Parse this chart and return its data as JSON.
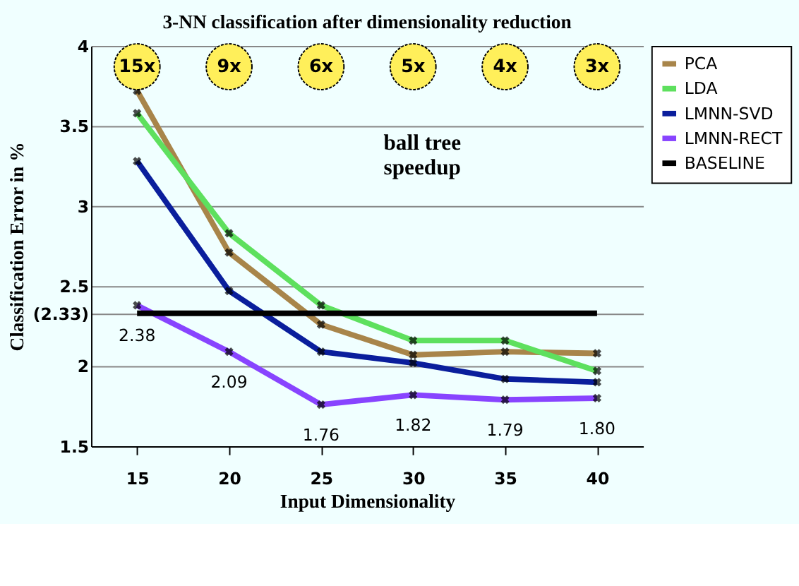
{
  "chart_data": {
    "type": "line",
    "title": "3-NN classification after dimensionality reduction",
    "xlabel": "Input Dimensionality",
    "ylabel": "Classification Error in %",
    "categories": [
      "15",
      "20",
      "25",
      "30",
      "35",
      "40"
    ],
    "series": [
      {
        "name": "PCA",
        "color": "#a8854a",
        "values": [
          3.72,
          2.71,
          2.26,
          2.07,
          2.09,
          2.08
        ]
      },
      {
        "name": "LDA",
        "color": "#5ee05e",
        "values": [
          3.58,
          2.83,
          2.38,
          2.16,
          2.16,
          1.97
        ]
      },
      {
        "name": "LMNN-SVD",
        "color": "#0a1e9c",
        "values": [
          3.28,
          2.47,
          2.09,
          2.02,
          1.92,
          1.9
        ]
      },
      {
        "name": "LMNN-RECT",
        "color": "#8844ff",
        "values": [
          2.38,
          2.09,
          1.76,
          1.82,
          1.79,
          1.8
        ],
        "value_labels": [
          "2.38",
          "2.09",
          "1.76",
          "1.82",
          "1.79",
          "1.80"
        ]
      },
      {
        "name": "BASELINE",
        "color": "#000000",
        "values": [
          2.33,
          2.33,
          2.33,
          2.33,
          2.33,
          2.33
        ],
        "marker": "none"
      }
    ],
    "ylim": [
      1.5,
      4
    ],
    "yticks": [
      1.5,
      2,
      2.5,
      3,
      3.5,
      4,
      {
        "value": 2.33,
        "label": "(2.33)"
      }
    ],
    "grid": "y",
    "legend": "right",
    "marker": "cross",
    "line_style": "solid",
    "annotations": [
      {
        "text": "15x",
        "x": "15",
        "y": 3.87
      },
      {
        "text": "9x",
        "x": "20",
        "y": 3.87
      },
      {
        "text": "6x",
        "x": "25",
        "y": 3.87
      },
      {
        "text": "5x",
        "x": "30",
        "y": 3.87
      },
      {
        "text": "4x",
        "x": "35",
        "y": 3.87
      },
      {
        "text": "3x",
        "x": "40",
        "y": 3.87
      },
      "ball tree speedup"
    ]
  }
}
